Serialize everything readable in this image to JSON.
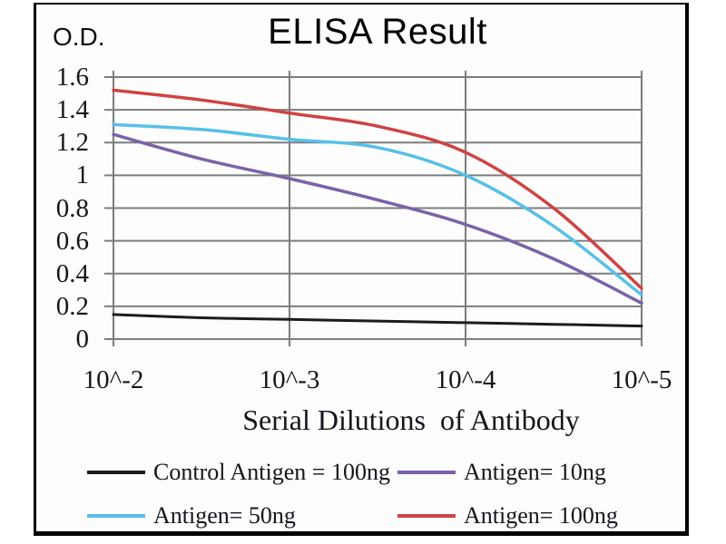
{
  "panel": {
    "background": "#fdfdfd",
    "border_color": "#000000",
    "grid_color": "#7d7d7d",
    "text_color": "#15151d"
  },
  "header": {
    "title": "ELISA Result",
    "y_axis_unit_label": "O.D."
  },
  "axes": {
    "x_label": "Serial Dilutions  of Antibody",
    "x_tick_labels": [
      "10^-2",
      "10^-3",
      "10^-4",
      "10^-5"
    ],
    "y_tick_labels": [
      "1.6",
      "1.4",
      "1.2",
      "1",
      "0.8",
      "0.6",
      "0.4",
      "0.2",
      "0"
    ]
  },
  "chart_data": {
    "type": "line",
    "title": "ELISA Result",
    "xlabel": "Serial Dilutions of Antibody",
    "ylabel": "O.D.",
    "x_tick_labels": [
      "10^-2",
      "10^-3",
      "10^-4",
      "10^-5"
    ],
    "x_tick_positions_log10": [
      -2,
      -3,
      -4,
      -5
    ],
    "y_ticks": [
      0,
      0.2,
      0.4,
      0.6,
      0.8,
      1,
      1.2,
      1.4,
      1.6
    ],
    "ylim": [
      0,
      1.6
    ],
    "grid": true,
    "legend_position": "bottom",
    "x_sample_positions_log10": [
      -2,
      -2.5,
      -3,
      -3.5,
      -4,
      -4.5,
      -5
    ],
    "series": [
      {
        "name": "Control Antigen = 100ng",
        "color": "#1c1c1c",
        "stroke_width": 3,
        "values_at_ticks": [
          0.15,
          0.12,
          0.1,
          0.08
        ],
        "samples": [
          0.15,
          0.13,
          0.12,
          0.11,
          0.1,
          0.09,
          0.08
        ]
      },
      {
        "name": "Antigen= 10ng",
        "color": "#7a63a8",
        "stroke_width": 3.5,
        "values_at_ticks": [
          1.25,
          0.98,
          0.7,
          0.22
        ],
        "samples": [
          1.25,
          1.1,
          0.98,
          0.85,
          0.7,
          0.49,
          0.22
        ]
      },
      {
        "name": "Antigen= 50ng",
        "color": "#57c0e8",
        "stroke_width": 3.5,
        "values_at_ticks": [
          1.31,
          1.22,
          1.0,
          0.27
        ],
        "samples": [
          1.31,
          1.28,
          1.22,
          1.17,
          1.0,
          0.69,
          0.27
        ]
      },
      {
        "name": "Antigen= 100ng",
        "color": "#cf4343",
        "stroke_width": 3.5,
        "values_at_ticks": [
          1.52,
          1.38,
          1.14,
          0.31
        ],
        "samples": [
          1.52,
          1.46,
          1.38,
          1.3,
          1.14,
          0.8,
          0.31
        ]
      }
    ],
    "legend_order_rowwise": [
      0,
      1,
      2,
      3
    ]
  }
}
